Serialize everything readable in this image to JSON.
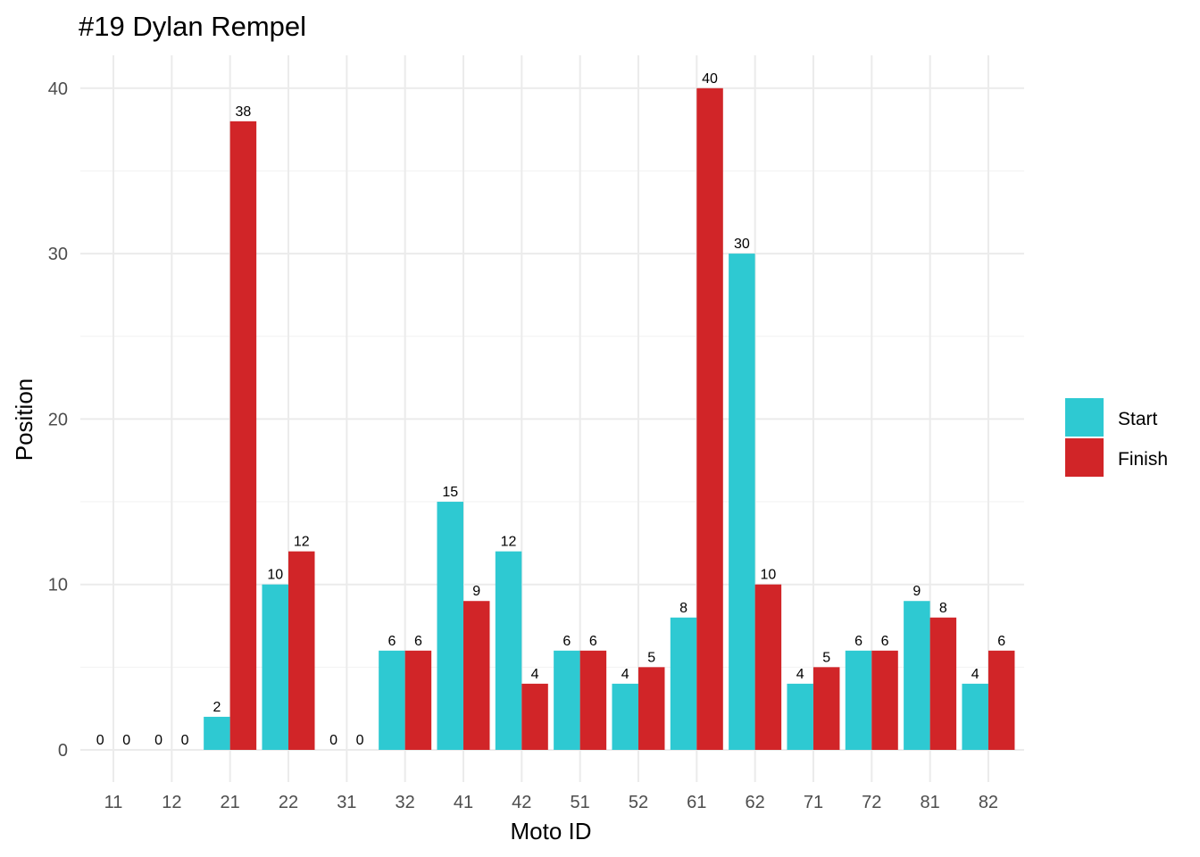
{
  "chart_data": {
    "type": "bar",
    "title": "#19 Dylan Rempel",
    "xlabel": "Moto ID",
    "ylabel": "Position",
    "categories": [
      "11",
      "12",
      "21",
      "22",
      "31",
      "32",
      "41",
      "42",
      "51",
      "52",
      "61",
      "62",
      "71",
      "72",
      "81",
      "82"
    ],
    "series": [
      {
        "name": "Start",
        "color": "#2ec9d2",
        "values": [
          0,
          0,
          2,
          10,
          0,
          6,
          15,
          12,
          6,
          4,
          8,
          30,
          4,
          6,
          9,
          4
        ]
      },
      {
        "name": "Finish",
        "color": "#d12528",
        "values": [
          0,
          0,
          38,
          12,
          0,
          6,
          9,
          4,
          6,
          5,
          40,
          10,
          5,
          6,
          8,
          6
        ]
      }
    ],
    "yticks": [
      0,
      10,
      20,
      30,
      40
    ],
    "ylim": [
      -2,
      42
    ],
    "grid": true,
    "legend_position": "right"
  }
}
